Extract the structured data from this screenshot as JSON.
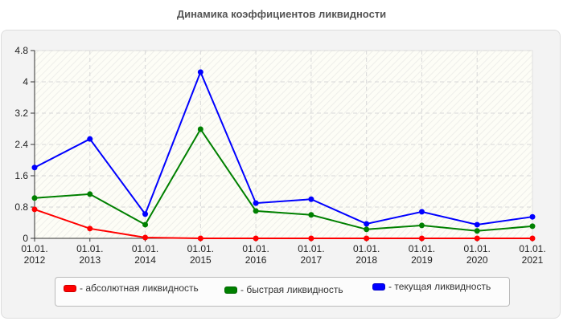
{
  "chart_data": {
    "type": "line",
    "title": "Динамика коэффициентов ликвидности",
    "xlabel": "",
    "ylabel": "",
    "categories": [
      "01.01.2012",
      "01.01.2013",
      "01.01.2014",
      "01.01.2015",
      "01.01.2016",
      "01.01.2017",
      "01.01.2018",
      "01.01.2019",
      "01.01.2020",
      "01.01.2021"
    ],
    "x_tick_labels": [
      [
        "01.01.",
        "2012"
      ],
      [
        "01.01.",
        "2013"
      ],
      [
        "01.01.",
        "2014"
      ],
      [
        "01.01.",
        "2015"
      ],
      [
        "01.01.",
        "2016"
      ],
      [
        "01.01.",
        "2017"
      ],
      [
        "01.01.",
        "2018"
      ],
      [
        "01.01.",
        "2019"
      ],
      [
        "01.01.",
        "2020"
      ],
      [
        "01.01.",
        "2021"
      ]
    ],
    "y_ticks": [
      "0",
      "0.8",
      "1.6",
      "2.4",
      "3.2",
      "4",
      "4.8"
    ],
    "ylim": [
      0,
      4.8
    ],
    "grid": true,
    "legend_position": "bottom",
    "series": [
      {
        "name": "абсолютная ликвидность",
        "color": "#ff0000",
        "values": [
          0.74,
          0.25,
          0.02,
          0,
          0,
          0,
          0,
          0,
          0,
          0
        ]
      },
      {
        "name": "быстрая ликвидность",
        "color": "#008000",
        "values": [
          1.03,
          1.13,
          0.35,
          2.79,
          0.7,
          0.6,
          0.23,
          0.33,
          0.19,
          0.31
        ]
      },
      {
        "name": "текущая ликвидность",
        "color": "#0000ff",
        "values": [
          1.81,
          2.54,
          0.62,
          4.25,
          0.9,
          1.0,
          0.37,
          0.68,
          0.35,
          0.55
        ]
      }
    ]
  },
  "legend": {
    "items": [
      {
        "label": "- абсолютная ликвидность",
        "color": "#ff0000"
      },
      {
        "label": "- быстрая ликвидность",
        "color": "#008000"
      },
      {
        "label": "- текущая ликвидность",
        "color": "#0000ff"
      }
    ]
  }
}
